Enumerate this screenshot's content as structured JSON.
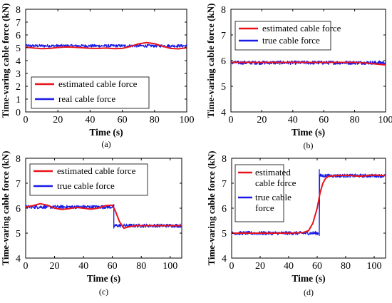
{
  "colors": {
    "estimated": "#e8141b",
    "true": "#1a1ae6",
    "axis": "#000000",
    "background": "#ffffff"
  },
  "chart_data": [
    {
      "type": "line",
      "panel_label": "(a)",
      "xlabel": "Time (s)",
      "ylabel": "Time-varing cable force (kN)",
      "xlim": [
        0,
        100
      ],
      "ylim": [
        0,
        8
      ],
      "xticks": [
        "0",
        "20",
        "40",
        "60",
        "80",
        "100"
      ],
      "yticks": [
        "0",
        "1",
        "2",
        "3",
        "4",
        "5",
        "6",
        "7",
        "8"
      ],
      "legend_position": "bottom-left",
      "series": [
        {
          "name": "estimated cable force",
          "color": "#e8141b",
          "x": [
            0,
            5,
            10,
            15,
            20,
            25,
            30,
            35,
            40,
            45,
            50,
            55,
            60,
            65,
            70,
            75,
            80,
            85,
            90,
            95,
            100
          ],
          "y": [
            5.05,
            4.98,
            4.93,
            4.95,
            5.02,
            5.06,
            5.04,
            5.0,
            4.96,
            4.95,
            4.98,
            4.93,
            4.95,
            5.1,
            5.3,
            5.4,
            5.32,
            5.12,
            4.95,
            4.92,
            5.0
          ]
        },
        {
          "name": "real cable force",
          "color": "#1a1ae6",
          "noisy": true,
          "x": [
            0,
            100
          ],
          "y": [
            5.15,
            5.15
          ]
        }
      ]
    },
    {
      "type": "line",
      "panel_label": "(b)",
      "xlabel": "Time (s)",
      "ylabel": "Time-varing cable force (kN)",
      "xlim": [
        0,
        100
      ],
      "ylim": [
        4,
        8
      ],
      "xticks": [
        "0",
        "20",
        "40",
        "60",
        "80",
        "100"
      ],
      "yticks": [
        "4",
        "5",
        "6",
        "7",
        "8"
      ],
      "legend_position": "top-right",
      "series": [
        {
          "name": "estimated cable force",
          "color": "#e8141b",
          "x": [
            0,
            20,
            40,
            60,
            80,
            85,
            90,
            95,
            100
          ],
          "y": [
            5.93,
            5.93,
            5.93,
            5.93,
            5.93,
            5.92,
            5.89,
            5.86,
            5.83
          ]
        },
        {
          "name": "true cable force",
          "color": "#1a1ae6",
          "noisy": true,
          "x": [
            0,
            100
          ],
          "y": [
            5.92,
            5.92
          ]
        }
      ]
    },
    {
      "type": "line",
      "panel_label": "(c)",
      "xlabel": "Time (s)",
      "ylabel": "Time-varing cable force (kN)",
      "xlim": [
        0,
        108
      ],
      "ylim": [
        4,
        8
      ],
      "xticks": [
        "0",
        "20",
        "40",
        "60",
        "80",
        "100"
      ],
      "yticks": [
        "4",
        "5",
        "6",
        "7",
        "8"
      ],
      "legend_position": "top-left",
      "series": [
        {
          "name": "estimated cable force",
          "color": "#e8141b",
          "x": [
            0,
            5,
            10,
            15,
            20,
            25,
            30,
            35,
            40,
            45,
            50,
            55,
            60,
            62,
            65,
            68,
            72,
            76,
            80,
            90,
            100,
            108
          ],
          "y": [
            6.05,
            6.1,
            6.18,
            6.12,
            6.0,
            5.95,
            5.98,
            6.03,
            6.0,
            5.96,
            6.0,
            6.1,
            6.12,
            5.9,
            5.45,
            5.2,
            5.26,
            5.3,
            5.3,
            5.3,
            5.3,
            5.3
          ]
        },
        {
          "name": "true cable force",
          "color": "#1a1ae6",
          "noisy": true,
          "step": true,
          "x": [
            0,
            61,
            61,
            108
          ],
          "y": [
            6.05,
            6.05,
            5.3,
            5.3
          ]
        }
      ]
    },
    {
      "type": "line",
      "panel_label": "(d)",
      "xlabel": "Time (s)",
      "ylabel": "Time-varing cable force (kN)",
      "xlim": [
        0,
        108
      ],
      "ylim": [
        4,
        8
      ],
      "xticks": [
        "0",
        "20",
        "40",
        "60",
        "80",
        "100"
      ],
      "yticks": [
        "4",
        "5",
        "6",
        "7",
        "8"
      ],
      "legend_position": "top-left",
      "series": [
        {
          "name": "estimated cable force",
          "color": "#e8141b",
          "x": [
            0,
            40,
            50,
            54,
            57,
            60,
            62,
            64,
            66,
            68,
            72,
            80,
            90,
            100,
            108
          ],
          "y": [
            5.0,
            5.0,
            5.02,
            5.1,
            5.4,
            6.0,
            6.6,
            7.0,
            7.2,
            7.28,
            7.3,
            7.32,
            7.28,
            7.33,
            7.3
          ]
        },
        {
          "name": "true cable force",
          "color": "#1a1ae6",
          "noisy": true,
          "step": true,
          "x": [
            0,
            61.5,
            61.5,
            108
          ],
          "y": [
            5.0,
            5.0,
            7.3,
            7.3
          ]
        }
      ]
    }
  ]
}
